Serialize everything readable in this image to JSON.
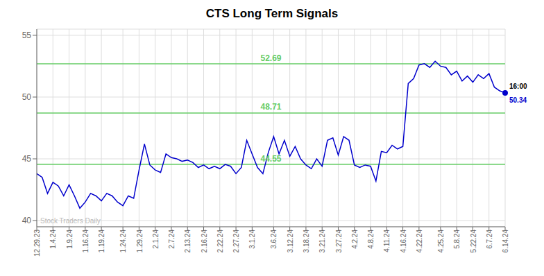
{
  "chart_data": {
    "type": "line",
    "title": "CTS Long Term Signals",
    "color": "#0000cc",
    "grid": true,
    "watermark": "Stock Traders Daily",
    "end_label": "16:00",
    "ylim": [
      39.5,
      55.5
    ],
    "yticks": [
      40,
      45,
      50,
      55
    ],
    "hlines": [
      {
        "y": 52.69,
        "label": "52.69",
        "color": "#66cc66"
      },
      {
        "y": 48.71,
        "label": "48.71",
        "color": "#66cc66"
      },
      {
        "y": 44.55,
        "label": "44.55",
        "color": "#66cc66"
      }
    ],
    "categories": [
      "12.29.23",
      null,
      null,
      "1.4.24",
      null,
      null,
      "1.9.24",
      null,
      null,
      "1.16.24",
      null,
      null,
      "1.19.24",
      null,
      null,
      null,
      "1.24.24",
      null,
      null,
      "1.29.24",
      null,
      null,
      "2.1.24",
      null,
      null,
      "2.7.24",
      null,
      null,
      "2.13.24",
      null,
      null,
      "2.16.24",
      null,
      null,
      "2.22.24",
      null,
      null,
      "2.27.24",
      null,
      null,
      "3.1.24",
      null,
      null,
      null,
      "3.6.24",
      null,
      null,
      "3.12.24",
      null,
      null,
      "3.18.24",
      null,
      null,
      "3.21.24",
      null,
      null,
      "3.27.24",
      null,
      null,
      "4.2.24",
      null,
      null,
      "4.8.24",
      null,
      null,
      "4.11.24",
      null,
      null,
      "4.16.24",
      null,
      null,
      "4.22.24",
      null,
      null,
      null,
      "4.25.24",
      null,
      null,
      "5.8.24",
      null,
      null,
      "5.22.24",
      null,
      null,
      "6.7.24",
      null,
      null,
      "6.14.24"
    ],
    "values": [
      43.8,
      43.5,
      42.2,
      43.1,
      42.8,
      42.0,
      42.9,
      42.0,
      41.0,
      41.5,
      42.2,
      42.0,
      41.6,
      42.2,
      42.0,
      41.5,
      41.2,
      42.0,
      41.8,
      44.1,
      46.2,
      44.5,
      44.1,
      43.9,
      45.4,
      45.1,
      45.0,
      44.8,
      44.9,
      44.7,
      44.3,
      44.5,
      44.2,
      44.4,
      44.2,
      44.55,
      44.4,
      43.8,
      44.3,
      46.5,
      45.4,
      44.3,
      43.8,
      45.5,
      46.8,
      45.4,
      46.5,
      45.2,
      46.0,
      45.0,
      44.5,
      44.2,
      45.0,
      44.4,
      46.5,
      46.7,
      45.3,
      46.8,
      46.5,
      44.5,
      44.3,
      44.5,
      44.4,
      43.2,
      45.6,
      45.5,
      46.1,
      45.8,
      46.0,
      51.1,
      51.5,
      52.6,
      52.7,
      52.4,
      52.9,
      52.5,
      52.4,
      51.8,
      52.1,
      51.3,
      51.7,
      51.2,
      51.8,
      51.5,
      51.9,
      50.8,
      50.5,
      50.34
    ]
  }
}
